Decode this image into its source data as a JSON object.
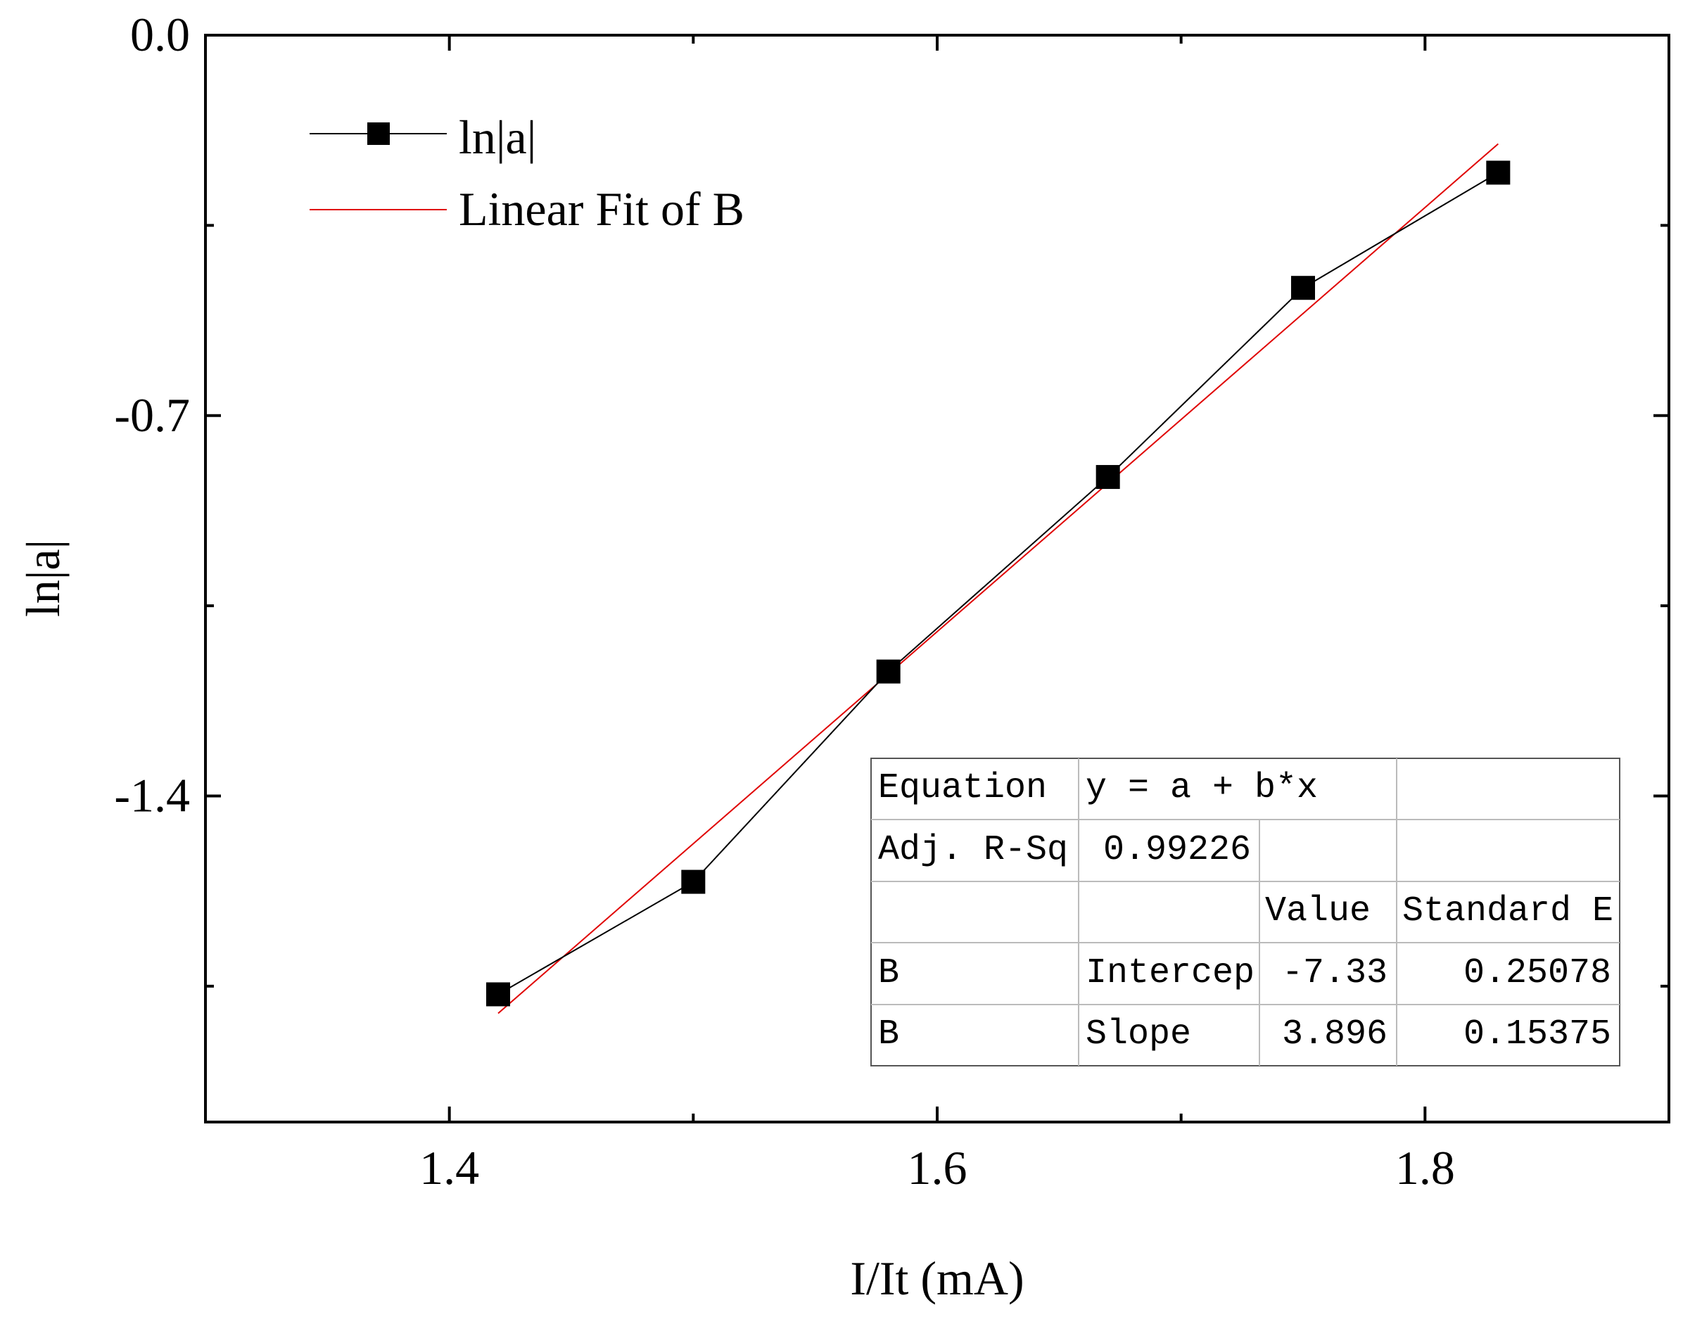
{
  "chart_data": {
    "type": "line",
    "title": "",
    "xlabel": "I/It (mA)",
    "ylabel": "ln|a|",
    "xlim": [
      1.3,
      1.9
    ],
    "ylim": [
      -2.0,
      0.0
    ],
    "x_ticks": [
      1.4,
      1.6,
      1.8
    ],
    "x_tick_labels": [
      "1.4",
      "1.6",
      "1.8"
    ],
    "x_minor_ticks": [
      1.5,
      1.7
    ],
    "y_ticks": [
      0.0,
      -0.7,
      -1.4
    ],
    "y_tick_labels": [
      "0.0",
      "-0.7",
      "-1.4"
    ],
    "y_minor_ticks": [
      -0.35,
      -1.05,
      -1.75
    ],
    "grid": false,
    "legend_position": "top-left",
    "series": [
      {
        "name": "ln|a|",
        "marker": "square",
        "color": "#000000",
        "x": [
          1.42,
          1.5,
          1.58,
          1.67,
          1.75,
          1.83
        ],
        "y": [
          -1.765,
          -1.558,
          -1.171,
          -0.813,
          -0.465,
          -0.253
        ]
      },
      {
        "name": "Linear Fit of B",
        "color": "#e00000",
        "x": [
          1.42,
          1.83
        ],
        "y": [
          -1.8,
          -0.2
        ]
      }
    ],
    "fit_table": {
      "rows": [
        [
          "Equation",
          "y = a + b*x",
          "",
          ""
        ],
        [
          "Adj. R-Sq",
          "0.99226",
          "",
          ""
        ],
        [
          "",
          "",
          "Value",
          "Standard E"
        ],
        [
          "B",
          "Intercep",
          "-7.33",
          "0.25078"
        ],
        [
          "B",
          "Slope",
          "3.896",
          "0.15375"
        ]
      ]
    }
  }
}
